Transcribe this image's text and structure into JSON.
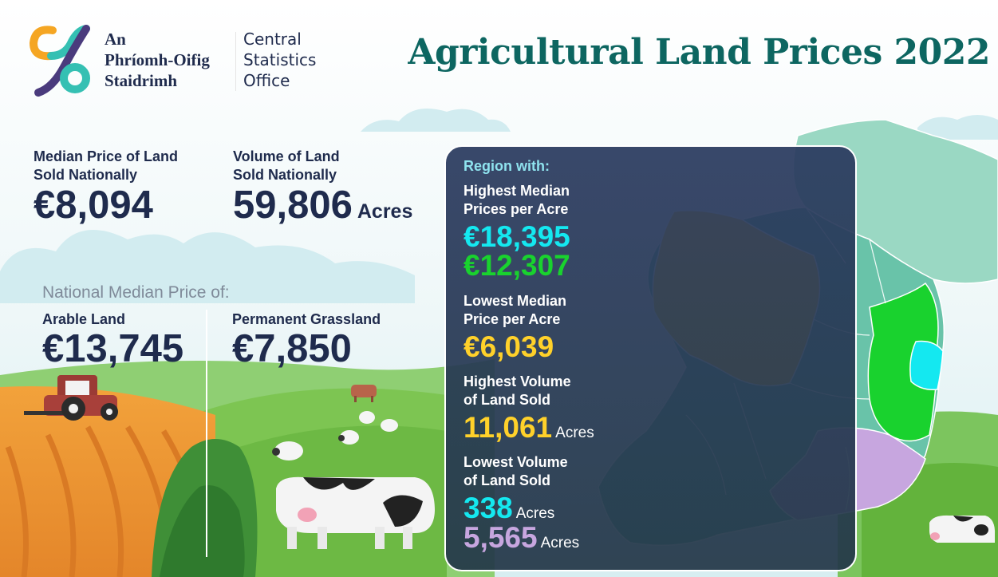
{
  "brand": {
    "irish_name": [
      "An",
      "Phríomh-Oifig",
      "Staidrimh"
    ],
    "english_name": [
      "Central",
      "Statistics",
      "Office"
    ]
  },
  "title": "Agricultural Land Prices 2022",
  "national": {
    "median_price_label": [
      "Median Price of Land",
      "Sold Nationally"
    ],
    "median_price_value": "€8,094",
    "volume_label": [
      "Volume of Land",
      "Sold Nationally"
    ],
    "volume_value": "59,806",
    "volume_unit": "Acres"
  },
  "by_land_type": {
    "heading": "National Median Price of:",
    "arable_label": "Arable Land",
    "arable_value": "€13,745",
    "grassland_label": "Permanent Grassland",
    "grassland_value": "€7,850"
  },
  "regions": {
    "heading": "Region with:",
    "highest_price_label": [
      "Highest Median",
      "Prices per Acre"
    ],
    "highest_price_values": [
      "€18,395",
      "€12,307"
    ],
    "lowest_price_label": [
      "Lowest Median",
      "Price per Acre"
    ],
    "lowest_price_value": "€6,039",
    "highest_volume_label": [
      "Highest Volume",
      "of Land Sold"
    ],
    "highest_volume_value": "11,061",
    "highest_volume_unit": "Acres",
    "lowest_volume_label": [
      "Lowest Volume",
      "of Land Sold"
    ],
    "lowest_volume_values": [
      "338",
      "5,565"
    ],
    "lowest_volume_unit": "Acres"
  },
  "colors": {
    "title_teal": "#0d6661",
    "navy_text": "#1f2b4d",
    "cyan_highlight": "#14e8f0",
    "green_highlight": "#19d22e",
    "yellow_highlight": "#ffd12a",
    "lavender_highlight": "#c7a6df",
    "map_base": "#69c3a9",
    "map_north": "#9ad8c3"
  },
  "icons": [
    "cso-logo-icon",
    "tractor-icon",
    "cow-icon",
    "sheep-icon",
    "cloud-icon",
    "ireland-map-icon"
  ]
}
